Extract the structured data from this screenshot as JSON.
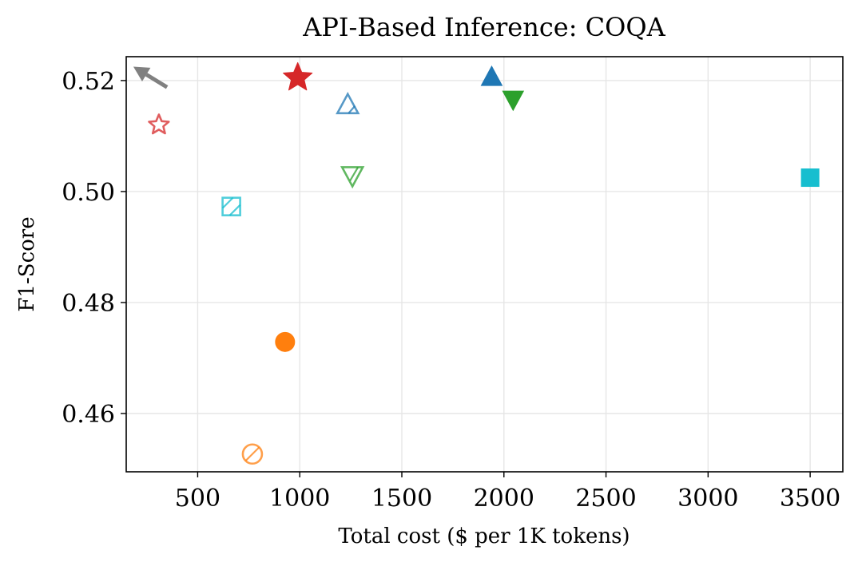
{
  "chart_data": {
    "type": "scatter",
    "title": "API-Based Inference: COQA",
    "xlabel": "Total cost ($ per 1K tokens)",
    "ylabel": "F1-Score",
    "xlim": [
      150,
      3660
    ],
    "ylim": [
      0.4495,
      0.5243
    ],
    "xticks": [
      500,
      1000,
      1500,
      2000,
      2500,
      3000,
      3500
    ],
    "xtick_labels": [
      "500",
      "1000",
      "1500",
      "2000",
      "2500",
      "3000",
      "3500"
    ],
    "yticks": [
      0.46,
      0.48,
      0.5,
      0.52
    ],
    "ytick_labels": [
      "0.46",
      "0.48",
      "0.50",
      "0.52"
    ],
    "grid": true,
    "annotations": [
      {
        "type": "arrow",
        "note": "better direction (toward upper-left)",
        "from": [
          350,
          0.5188
        ],
        "to": [
          185,
          0.5225
        ],
        "color": "#808080"
      }
    ],
    "points": [
      {
        "name": "red-star-filled",
        "marker": "star",
        "filled": true,
        "hatched": false,
        "color": "#d62728",
        "x": 990,
        "y": 0.5205
      },
      {
        "name": "red-star-hollow",
        "marker": "star",
        "filled": false,
        "hatched": false,
        "color": "#d62728",
        "x": 310,
        "y": 0.512
      },
      {
        "name": "blue-triangle-up-filled",
        "marker": "triangle-up",
        "filled": true,
        "hatched": false,
        "color": "#1f77b4",
        "x": 1940,
        "y": 0.5207
      },
      {
        "name": "blue-triangle-up-hatched",
        "marker": "triangle-up",
        "filled": false,
        "hatched": true,
        "color": "#1f77b4",
        "x": 1235,
        "y": 0.5157
      },
      {
        "name": "green-triangle-down-filled",
        "marker": "triangle-down",
        "filled": true,
        "hatched": false,
        "color": "#2ca02c",
        "x": 2045,
        "y": 0.5165
      },
      {
        "name": "green-triangle-down-hatched",
        "marker": "triangle-down",
        "filled": false,
        "hatched": true,
        "color": "#2ca02c",
        "x": 1258,
        "y": 0.5028
      },
      {
        "name": "cyan-square-filled",
        "marker": "square",
        "filled": true,
        "hatched": false,
        "color": "#17becf",
        "x": 3500,
        "y": 0.5025
      },
      {
        "name": "cyan-square-hatched",
        "marker": "square",
        "filled": false,
        "hatched": true,
        "color": "#17becf",
        "x": 665,
        "y": 0.4973
      },
      {
        "name": "orange-circle-filled",
        "marker": "circle",
        "filled": true,
        "hatched": false,
        "color": "#ff7f0e",
        "x": 928,
        "y": 0.4729
      },
      {
        "name": "orange-circle-hatched",
        "marker": "circle",
        "filled": false,
        "hatched": true,
        "color": "#ff7f0e",
        "x": 768,
        "y": 0.4527
      }
    ]
  }
}
